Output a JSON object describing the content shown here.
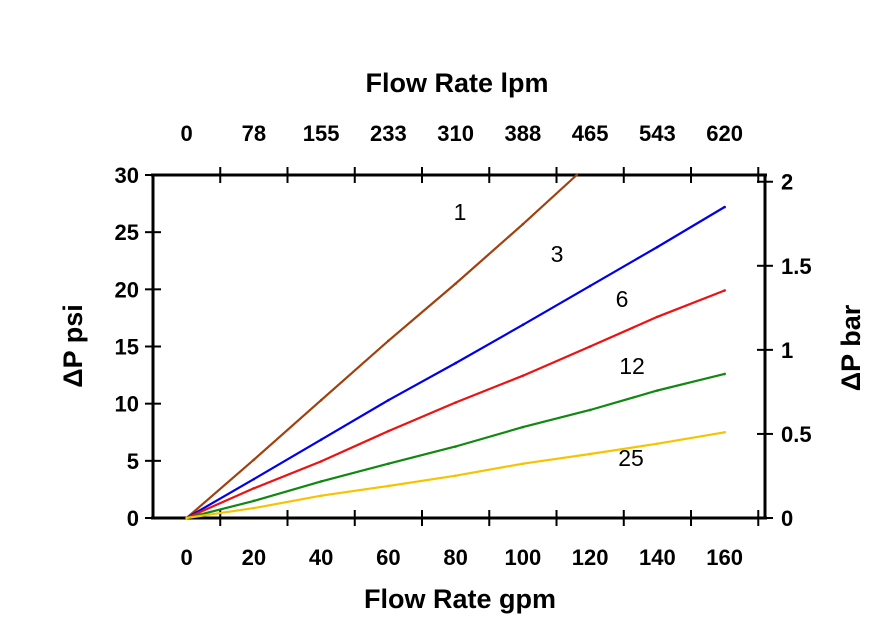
{
  "chart_data": {
    "type": "line",
    "title": "",
    "xlabel": "Flow Rate gpm",
    "x2label": "Flow Rate lpm",
    "ylabel": "ΔP psi",
    "y2label": "ΔP bar",
    "xlim": [
      -10,
      172
    ],
    "ylim": [
      0,
      30
    ],
    "y2lim": [
      0,
      2.04
    ],
    "x_tick_labels": [
      "0",
      "20",
      "40",
      "60",
      "80",
      "100",
      "120",
      "140",
      "160"
    ],
    "x_tick_values": [
      0,
      20,
      40,
      60,
      80,
      100,
      120,
      140,
      160
    ],
    "x2_tick_labels": [
      "0",
      "78",
      "155",
      "233",
      "310",
      "388",
      "465",
      "543",
      "620"
    ],
    "y_tick_labels": [
      "0",
      "5",
      "10",
      "15",
      "20",
      "25",
      "30"
    ],
    "y_tick_values": [
      0,
      5,
      10,
      15,
      20,
      25,
      30
    ],
    "y2_tick_labels": [
      "0",
      "0.5",
      "1",
      "1.5",
      "2"
    ],
    "y2_tick_values": [
      0,
      0.5,
      1,
      1.5,
      2
    ],
    "grid": false,
    "series": [
      {
        "name": "1",
        "color": "#a0410d",
        "x": [
          0,
          20,
          40,
          60,
          80,
          100,
          116
        ],
        "y": [
          0,
          5.1,
          10.3,
          15.5,
          20.5,
          25.7,
          30
        ]
      },
      {
        "name": "3",
        "color": "#0000ee",
        "x": [
          0,
          20,
          40,
          60,
          80,
          100,
          120,
          140,
          160
        ],
        "y": [
          0,
          3.4,
          6.85,
          10.3,
          13.55,
          16.9,
          20.3,
          23.7,
          27.2
        ]
      },
      {
        "name": "6",
        "color": "#ee1111",
        "x": [
          0,
          20,
          40,
          60,
          80,
          100,
          120,
          140,
          160
        ],
        "y": [
          0,
          2.6,
          4.95,
          7.6,
          10.1,
          12.45,
          15.0,
          17.6,
          19.9
        ]
      },
      {
        "name": "12",
        "color": "#118811",
        "x": [
          0,
          20,
          40,
          60,
          80,
          100,
          120,
          140,
          160
        ],
        "y": [
          0,
          1.5,
          3.2,
          4.75,
          6.25,
          7.95,
          9.45,
          11.15,
          12.6
        ]
      },
      {
        "name": "25",
        "color": "#f5c400",
        "x": [
          0,
          20,
          40,
          60,
          80,
          100,
          120,
          140,
          160
        ],
        "y": [
          0,
          0.87,
          1.95,
          2.8,
          3.7,
          4.75,
          5.6,
          6.5,
          7.5
        ]
      }
    ]
  }
}
